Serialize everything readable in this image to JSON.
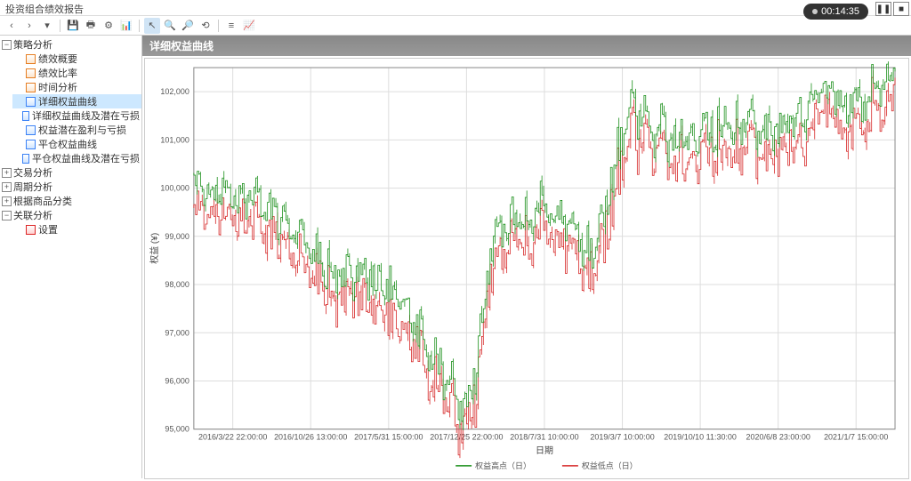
{
  "window": {
    "title": "投资组合绩效报告",
    "timer": "00:14:35"
  },
  "toolbar": {
    "nav_prev": "‹",
    "nav_next": "›",
    "nav_dd": "▾",
    "save": "💾",
    "print": "🖶",
    "settings": "⚙",
    "chart": "📊",
    "cursor": "↖",
    "zoom_out": "🔍",
    "zoom_in": "🔎",
    "reset": "⟲",
    "toggle": "≡",
    "stats": "📈"
  },
  "tree": {
    "root": "策略分析",
    "children": [
      {
        "label": "绩效概要",
        "icon": "orange"
      },
      {
        "label": "绩效比率",
        "icon": "orange"
      },
      {
        "label": "时间分析",
        "icon": "orange"
      },
      {
        "label": "详细权益曲线",
        "icon": "blue",
        "selected": true
      },
      {
        "label": "详细权益曲线及潜在亏损",
        "icon": "blue"
      },
      {
        "label": "权益潜在盈利与亏损",
        "icon": "blue"
      },
      {
        "label": "平仓权益曲线",
        "icon": "blue"
      },
      {
        "label": "平仓权益曲线及潜在亏损",
        "icon": "blue"
      }
    ],
    "siblings": [
      {
        "label": "交易分析"
      },
      {
        "label": "周期分析"
      },
      {
        "label": "根据商品分类"
      },
      {
        "label": "关联分析",
        "children": [
          {
            "label": "设置",
            "icon": "red"
          }
        ]
      }
    ]
  },
  "chart": {
    "title": "详细权益曲线",
    "ylabel": "权益 (¥)",
    "xlabel": "日期",
    "ylim": [
      95000,
      102500
    ],
    "yticks": [
      95000,
      96000,
      97000,
      98000,
      99000,
      100000,
      101000,
      102000
    ],
    "xticks": [
      "2016/3/22 22:00:00",
      "2016/10/26 13:00:00",
      "2017/5/31 15:00:00",
      "2017/12/25 22:00:00",
      "2018/7/31 10:00:00",
      "2019/3/7 10:00:00",
      "2019/10/10 11:30:00",
      "2020/6/8 23:00:00",
      "2021/1/7 15:00:00"
    ],
    "legend": [
      {
        "label": "权益高点（日）",
        "color": "#1a8f1a"
      },
      {
        "label": "权益低点（日）",
        "color": "#d62828"
      }
    ],
    "colors": {
      "high": "#1a8f1a",
      "low": "#d62828",
      "grid": "#dddddd",
      "bg": "#ffffff"
    },
    "series_len": 420,
    "high_base": 99800,
    "low_offset": 250
  }
}
